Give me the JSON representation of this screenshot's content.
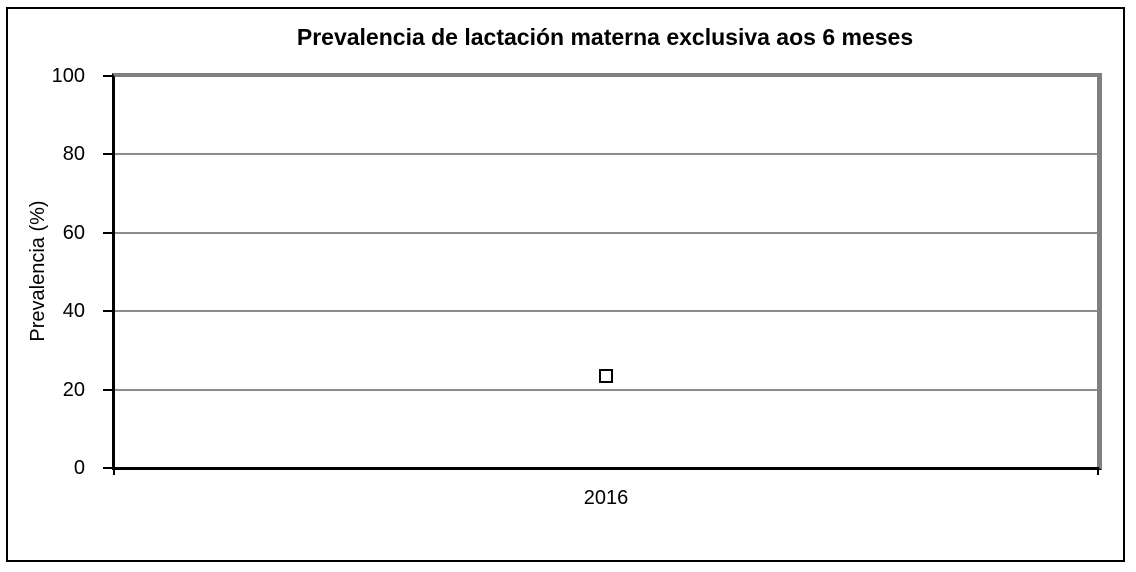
{
  "chart_data": {
    "type": "scatter",
    "title": "Prevalencia de lactación materna exclusiva aos 6 meses",
    "xlabel": "",
    "ylabel": "Prevalencia (%)",
    "categories": [
      "2016"
    ],
    "values": [
      23.5
    ],
    "ylim": [
      0,
      100
    ],
    "yticks": [
      0,
      20,
      40,
      60,
      80,
      100
    ],
    "grid": true,
    "legend": false,
    "marker_style": "open-square",
    "colors": {
      "background": "#ffffff",
      "text": "#000000",
      "gridline": "#8c8c8c",
      "plot_border_shadow": "#7f7f7f",
      "axis_line": "#000000",
      "marker_border": "#000000",
      "marker_fill": "#ffffff",
      "figure_border": "#000000"
    }
  }
}
